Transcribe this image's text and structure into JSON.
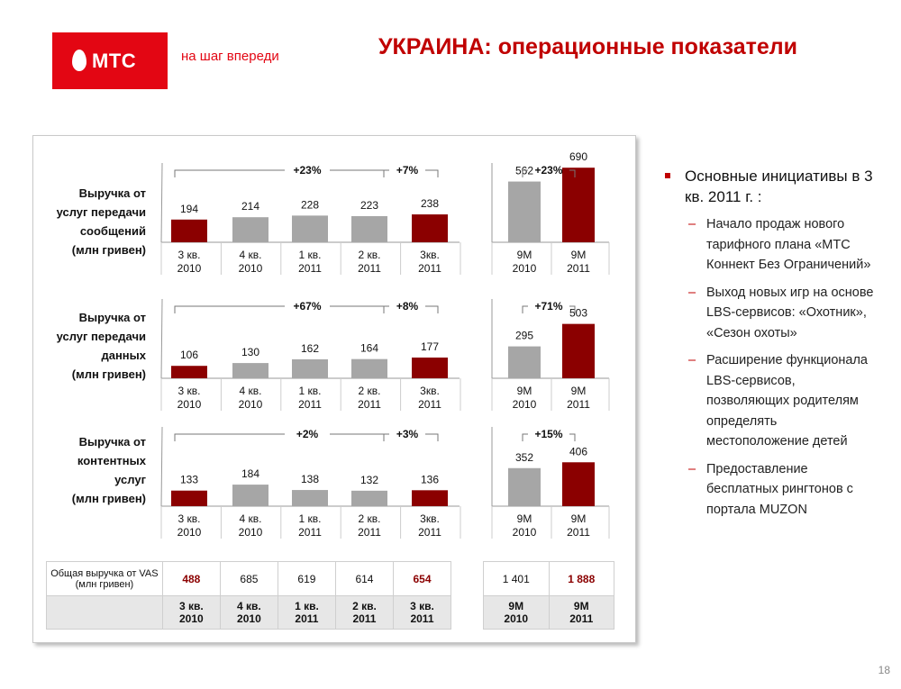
{
  "header": {
    "logo_text": "МТС",
    "tagline": "на шаг впереди",
    "title": "УКРАИНА: операционные показатели"
  },
  "chart_data": [
    {
      "type": "bar",
      "title": "Выручка от услуг передачи сообщений (млн гривен)",
      "categories": [
        "3 кв. 2010",
        "4 кв. 2010",
        "1 кв. 2011",
        "2 кв. 2011",
        "3кв. 2011"
      ],
      "values": [
        194,
        214,
        228,
        223,
        238
      ],
      "highlight": [
        0,
        4
      ],
      "growth_labels": [
        "+23%",
        "+7%"
      ],
      "nine_month": {
        "categories": [
          "9M 2010",
          "9M 2011"
        ],
        "values": [
          562,
          690
        ],
        "highlight": [
          1
        ],
        "growth_label": "+23%"
      }
    },
    {
      "type": "bar",
      "title": "Выручка от услуг передачи данных (млн гривен)",
      "categories": [
        "3 кв. 2010",
        "4 кв. 2010",
        "1 кв. 2011",
        "2 кв. 2011",
        "3кв. 2011"
      ],
      "values": [
        106,
        130,
        162,
        164,
        177
      ],
      "highlight": [
        0,
        4
      ],
      "growth_labels": [
        "+67%",
        "+8%"
      ],
      "nine_month": {
        "categories": [
          "9M 2010",
          "9M 2011"
        ],
        "values": [
          295,
          503
        ],
        "highlight": [
          1
        ],
        "growth_label": "+71%"
      }
    },
    {
      "type": "bar",
      "title": "Выручка от контентных услуг (млн гривен)",
      "categories": [
        "3 кв. 2010",
        "4 кв. 2010",
        "1 кв. 2011",
        "2 кв. 2011",
        "3кв. 2011"
      ],
      "values": [
        133,
        184,
        138,
        132,
        136
      ],
      "highlight": [
        0,
        4
      ],
      "growth_labels": [
        "+2%",
        "+3%"
      ],
      "nine_month": {
        "categories": [
          "9M 2010",
          "9M 2011"
        ],
        "values": [
          352,
          406
        ],
        "highlight": [
          1
        ],
        "growth_label": "+15%"
      }
    }
  ],
  "row_labels": [
    [
      "Выручка от",
      "услуг передачи",
      "сообщений",
      "(млн гривен)"
    ],
    [
      "Выручка от",
      "услуг передачи",
      "данных",
      "(млн гривен)"
    ],
    [
      "Выручка от",
      "контентных",
      "услуг",
      "(млн гривен)"
    ]
  ],
  "vas_table": {
    "label": "Общая выручка от VAS (млн гривен)",
    "quarter_values": [
      "488",
      "685",
      "619",
      "614",
      "654"
    ],
    "quarter_highlight": [
      0,
      4
    ],
    "quarter_headers": [
      "3 кв. 2010",
      "4 кв. 2010",
      "1 кв. 2011",
      "2 кв. 2011",
      "3 кв. 2011"
    ],
    "nine_month_values": [
      "1 401",
      "1 888"
    ],
    "nine_month_highlight": [
      1
    ],
    "nine_month_headers": [
      "9M 2010",
      "9M 2011"
    ]
  },
  "initiatives": {
    "heading": "Основные инициативы в 3 кв. 2011 г. :",
    "items": [
      "Начало продаж нового тарифного плана «МТС Коннект Без Ограничений»",
      "Выход новых игр на основе LBS-сервисов: «Охотник», «Сезон охоты»",
      "Расширение функционала LBS-сервисов, позволяющих родителям определять местоположение детей",
      "Предоставление бесплатных рингтонов с портала MUZON"
    ]
  },
  "page_number": "18",
  "colors": {
    "brand_red": "#e30613",
    "dark_red": "#8b0000",
    "gray_bar": "#a6a6a6",
    "title_red": "#c00000"
  }
}
